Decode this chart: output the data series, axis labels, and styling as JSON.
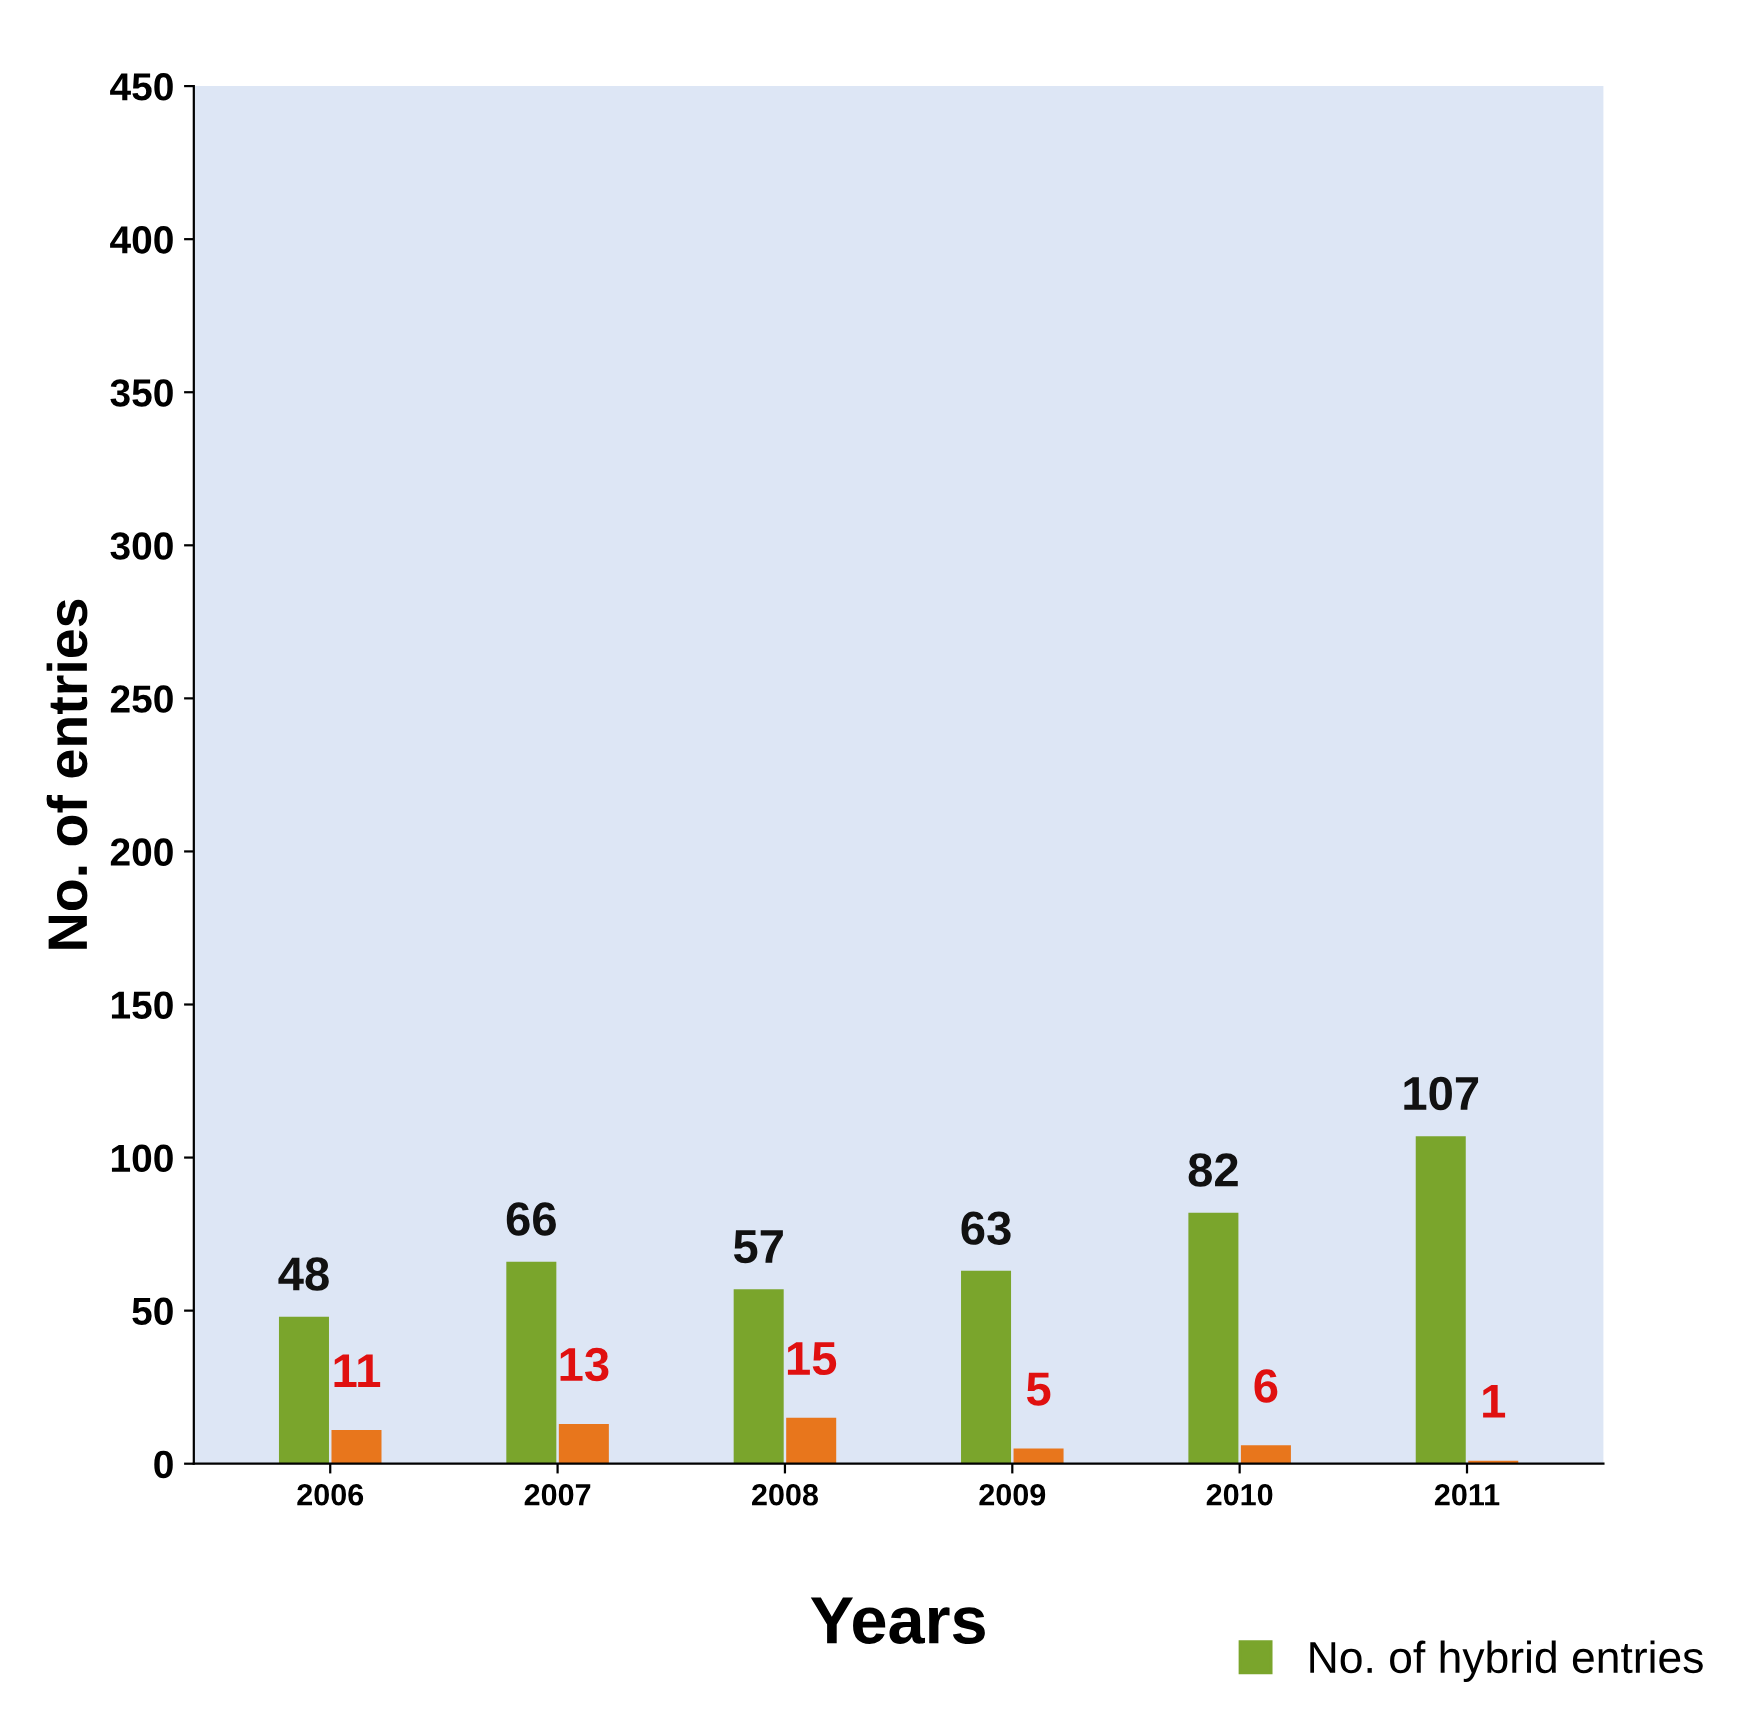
{
  "chart_data": {
    "type": "bar",
    "xlabel": "Years",
    "ylabel": "No. of entries",
    "categories": [
      "2006",
      "2007",
      "2008",
      "2009",
      "2010",
      "2011"
    ],
    "series": [
      {
        "name": "No. of hybrid entries",
        "color": "#7aa52c",
        "values": [
          48,
          66,
          57,
          63,
          82,
          107
        ]
      },
      {
        "color": "#e8761c",
        "values": [
          11,
          13,
          15,
          5,
          6,
          1
        ]
      }
    ],
    "ylim": [
      0,
      450
    ],
    "yticks": [
      0,
      50,
      100,
      150,
      200,
      250,
      300,
      350,
      400,
      450
    ],
    "data_labels": true,
    "legend": "bottom right",
    "grid": false
  }
}
